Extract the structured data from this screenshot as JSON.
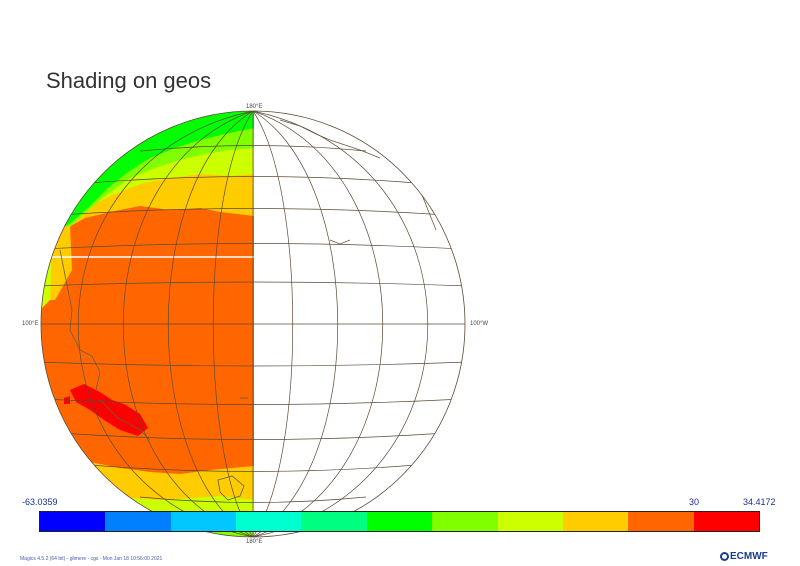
{
  "title": "Shading on geos",
  "labels": {
    "top": "180°E",
    "bottom": "180°E",
    "left": "100°E",
    "right": "100°W"
  },
  "colorbar": {
    "min_label": "-63.0359",
    "mid_label": "30",
    "max_label": "34.4172",
    "colors": [
      "#0000ff",
      "#0080ff",
      "#00c8ff",
      "#00ffd0",
      "#00ff80",
      "#00ff00",
      "#80ff00",
      "#ccff00",
      "#ffcc00",
      "#ff6600",
      "#ff0000"
    ]
  },
  "footer": "Magics 4.5.2 (64 bit) - glimere - cgs - Mon Jan 18 10:56:00 2021",
  "logo": "ECMWF"
}
